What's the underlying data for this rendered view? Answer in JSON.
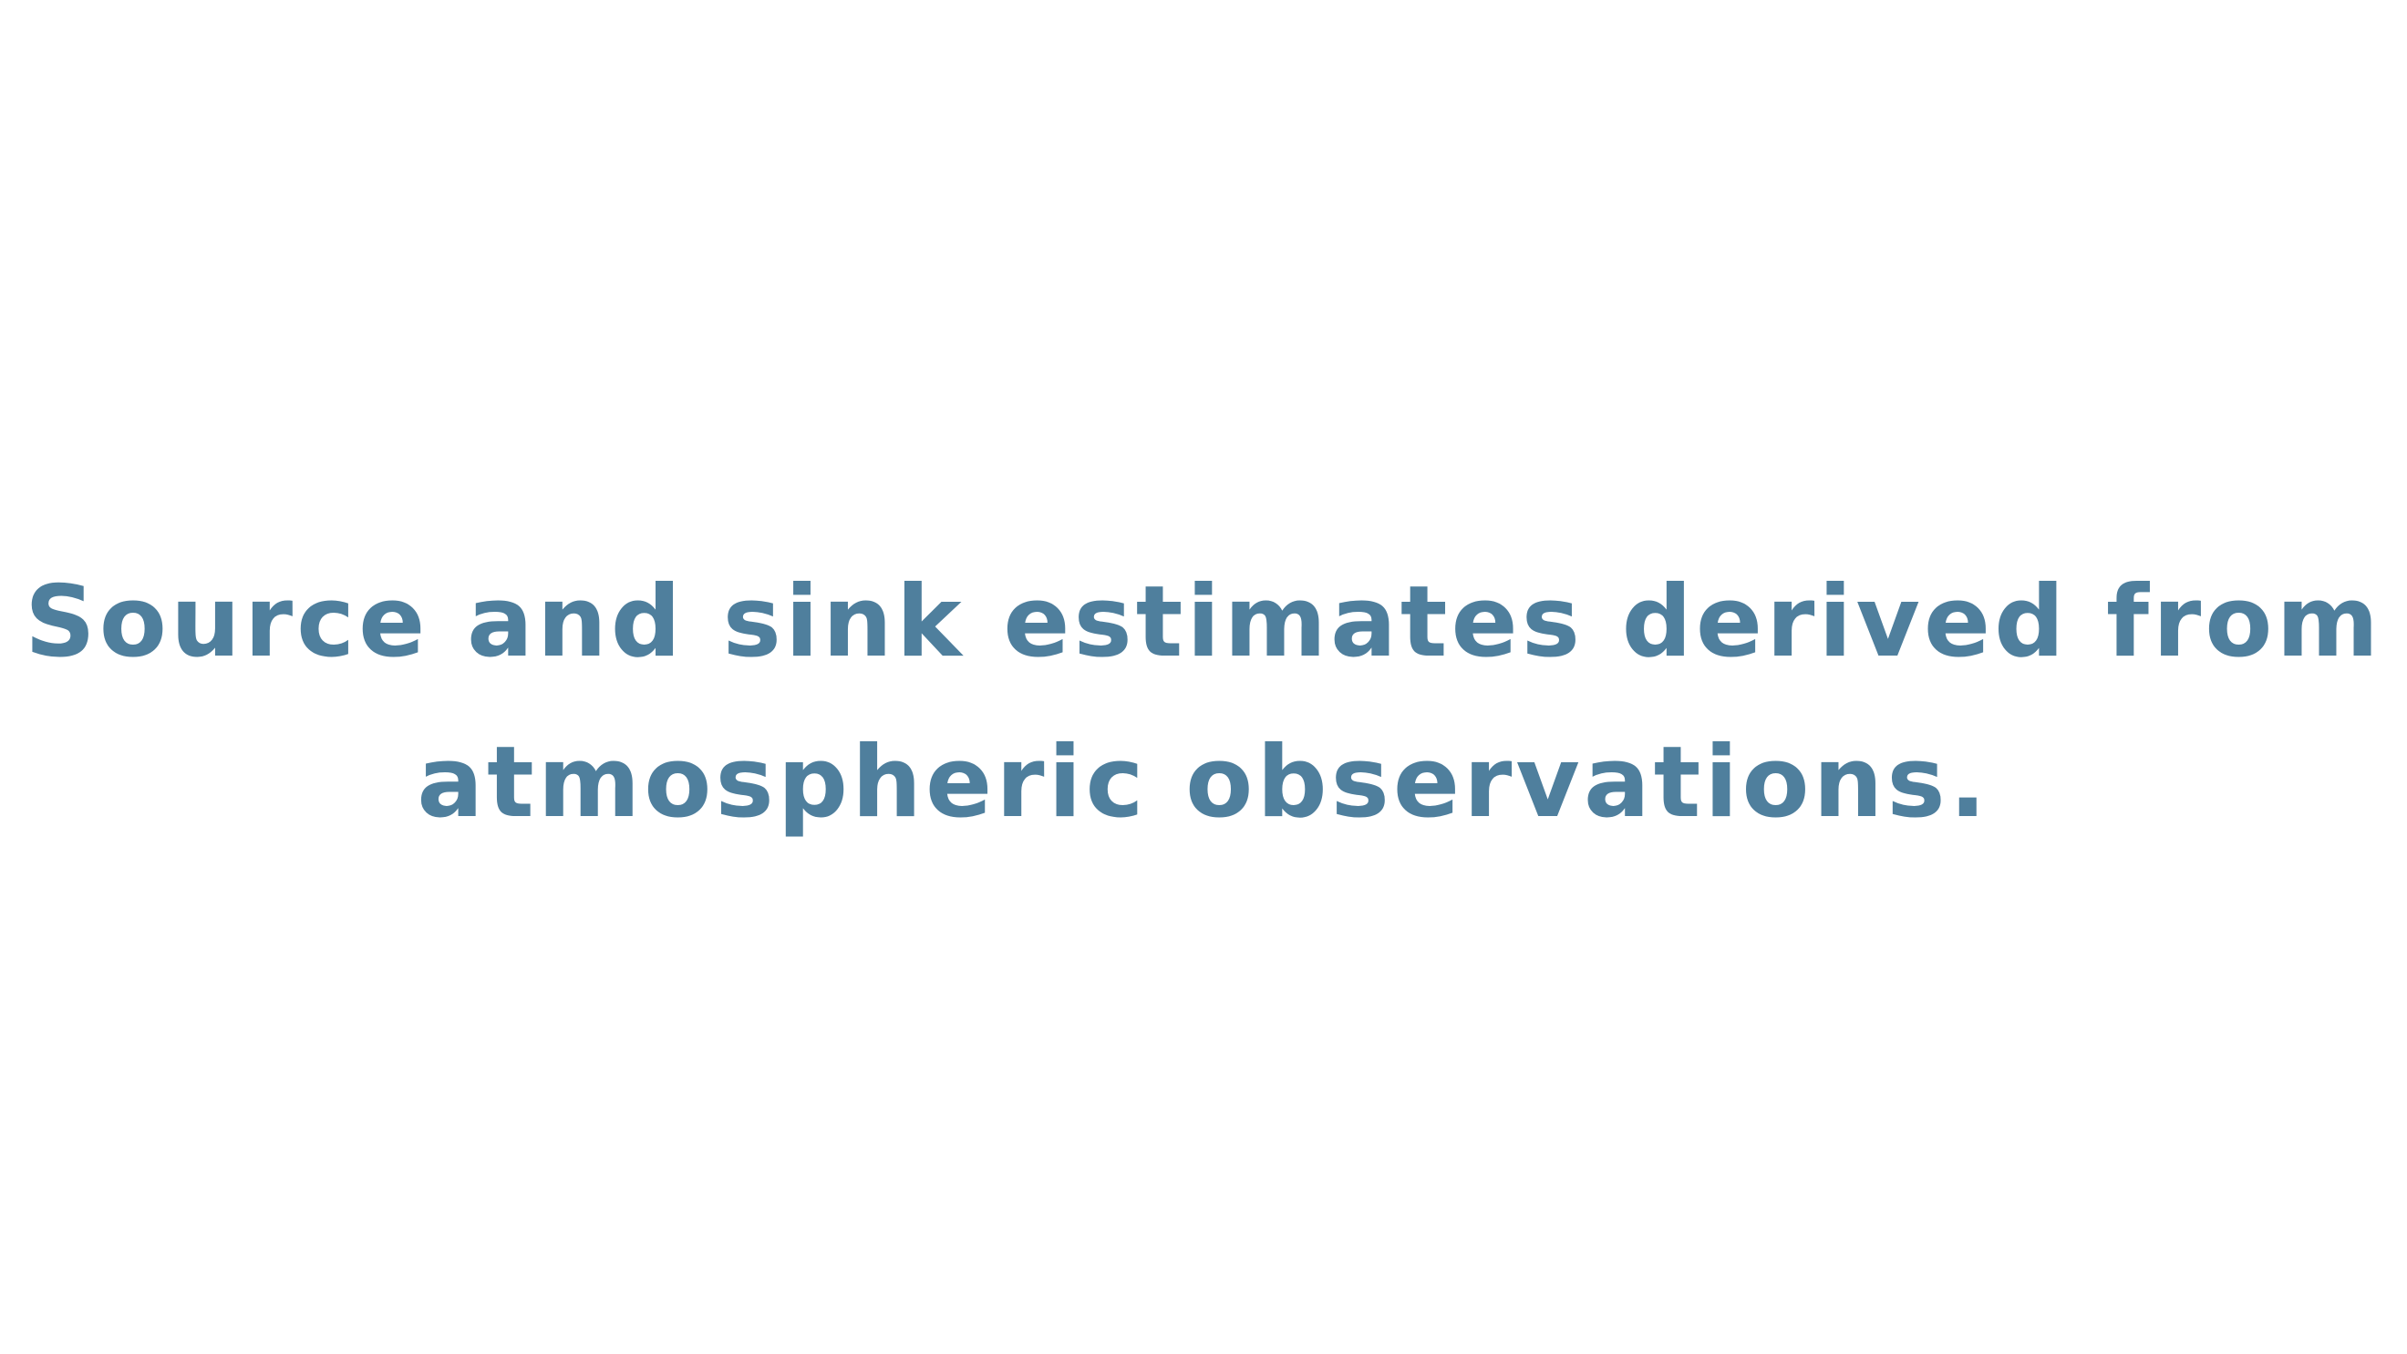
{
  "slide": {
    "text_color": "#4f7f9d",
    "background_color": "#ffffff",
    "headline_lines": [
      "Source and sink estimates derived from",
      "atmospheric observations."
    ]
  }
}
